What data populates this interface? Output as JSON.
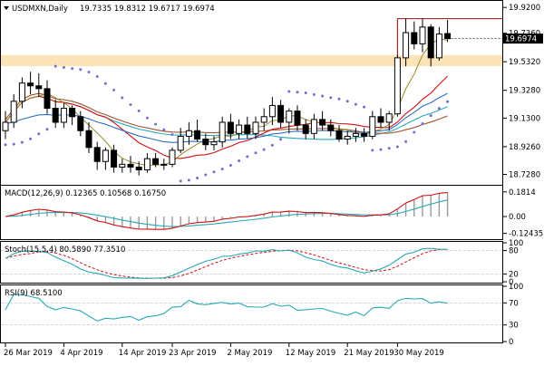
{
  "header": {
    "symbol": "USDMXN,Daily",
    "ohlc": "19.7335 19.8312 19.6717 19.6974",
    "menu_icon": "triangle-down-icon"
  },
  "price_axis": {
    "ticks": [
      "19.9200",
      "19.7360",
      "19.5320",
      "19.3280",
      "19.1300",
      "18.9260",
      "18.7280"
    ],
    "ylim": [
      18.66,
      19.96
    ],
    "current_price": "19.6974",
    "current_price_color": "#000000"
  },
  "macd": {
    "title": "MACD(12,26,9) 0.12365 0.10568 0.16750",
    "ticks": [
      "0.1814",
      "0.00",
      "-0.12435"
    ]
  },
  "stoch": {
    "title": "Stoch(15,5,4) 80.5890 77.3510",
    "ticks": [
      "100",
      "80",
      "20",
      "0"
    ]
  },
  "rsi": {
    "title": "RSI(9) 68.5100",
    "ticks": [
      "100",
      "70",
      "30",
      "0"
    ]
  },
  "date_axis": {
    "labels": [
      "26 Mar 2019",
      "4 Apr 2019",
      "14 Apr 2019",
      "23 Apr 2019",
      "2 May 2019",
      "12 May 2019",
      "21 May 2019",
      "30 May 2019"
    ]
  },
  "colors": {
    "resistance_zone": "#fce3b8",
    "resistance_line": "#a52a2a",
    "ma_fast": "#9a8c2a",
    "ma_red": "#cc1111",
    "ma_brown": "#a0522d",
    "ma_teal": "#2aa8b8",
    "ma_blue": "#1f5fbf",
    "sar": "#7070d0",
    "macd_hist": "#9a9a9a"
  },
  "chart_data": {
    "type": "candlestick",
    "candles": [
      {
        "date": "2019-03-26",
        "o": 19.04,
        "h": 19.18,
        "l": 18.98,
        "c": 19.1
      },
      {
        "date": "2019-03-27",
        "o": 19.1,
        "h": 19.3,
        "l": 19.06,
        "c": 19.25
      },
      {
        "date": "2019-03-28",
        "o": 19.25,
        "h": 19.42,
        "l": 19.2,
        "c": 19.38
      },
      {
        "date": "2019-03-29",
        "o": 19.38,
        "h": 19.46,
        "l": 19.3,
        "c": 19.36
      },
      {
        "date": "2019-04-01",
        "o": 19.36,
        "h": 19.45,
        "l": 19.28,
        "c": 19.34
      },
      {
        "date": "2019-04-02",
        "o": 19.34,
        "h": 19.4,
        "l": 19.16,
        "c": 19.2
      },
      {
        "date": "2019-04-03",
        "o": 19.2,
        "h": 19.26,
        "l": 19.06,
        "c": 19.1
      },
      {
        "date": "2019-04-04",
        "o": 19.1,
        "h": 19.24,
        "l": 19.06,
        "c": 19.2
      },
      {
        "date": "2019-04-05",
        "o": 19.2,
        "h": 19.22,
        "l": 19.08,
        "c": 19.14
      },
      {
        "date": "2019-04-08",
        "o": 19.14,
        "h": 19.18,
        "l": 19.0,
        "c": 19.04
      },
      {
        "date": "2019-04-09",
        "o": 19.04,
        "h": 19.1,
        "l": 18.88,
        "c": 18.92
      },
      {
        "date": "2019-04-10",
        "o": 18.92,
        "h": 18.96,
        "l": 18.76,
        "c": 18.82
      },
      {
        "date": "2019-04-11",
        "o": 18.82,
        "h": 18.92,
        "l": 18.76,
        "c": 18.9
      },
      {
        "date": "2019-04-12",
        "o": 18.9,
        "h": 18.94,
        "l": 18.74,
        "c": 18.78
      },
      {
        "date": "2019-04-15",
        "o": 18.78,
        "h": 18.84,
        "l": 18.74,
        "c": 18.8
      },
      {
        "date": "2019-04-16",
        "o": 18.8,
        "h": 18.86,
        "l": 18.74,
        "c": 18.78
      },
      {
        "date": "2019-04-17",
        "o": 18.78,
        "h": 18.82,
        "l": 18.72,
        "c": 18.76
      },
      {
        "date": "2019-04-18",
        "o": 18.76,
        "h": 18.88,
        "l": 18.74,
        "c": 18.84
      },
      {
        "date": "2019-04-19",
        "o": 18.84,
        "h": 18.88,
        "l": 18.78,
        "c": 18.8
      },
      {
        "date": "2019-04-22",
        "o": 18.8,
        "h": 18.84,
        "l": 18.76,
        "c": 18.8
      },
      {
        "date": "2019-04-23",
        "o": 18.8,
        "h": 18.92,
        "l": 18.78,
        "c": 18.9
      },
      {
        "date": "2019-04-24",
        "o": 18.9,
        "h": 19.06,
        "l": 18.88,
        "c": 19.0
      },
      {
        "date": "2019-04-25",
        "o": 19.0,
        "h": 19.1,
        "l": 18.94,
        "c": 19.04
      },
      {
        "date": "2019-04-26",
        "o": 19.04,
        "h": 19.12,
        "l": 18.96,
        "c": 18.98
      },
      {
        "date": "2019-04-29",
        "o": 18.98,
        "h": 19.02,
        "l": 18.9,
        "c": 18.94
      },
      {
        "date": "2019-04-30",
        "o": 18.94,
        "h": 19.0,
        "l": 18.9,
        "c": 18.96
      },
      {
        "date": "2019-05-01",
        "o": 18.96,
        "h": 19.14,
        "l": 18.92,
        "c": 19.1
      },
      {
        "date": "2019-05-02",
        "o": 19.1,
        "h": 19.16,
        "l": 18.98,
        "c": 19.02
      },
      {
        "date": "2019-05-03",
        "o": 19.02,
        "h": 19.12,
        "l": 18.98,
        "c": 19.08
      },
      {
        "date": "2019-05-06",
        "o": 19.08,
        "h": 19.14,
        "l": 18.98,
        "c": 19.02
      },
      {
        "date": "2019-05-07",
        "o": 19.02,
        "h": 19.14,
        "l": 18.98,
        "c": 19.1
      },
      {
        "date": "2019-05-08",
        "o": 19.1,
        "h": 19.2,
        "l": 19.04,
        "c": 19.14
      },
      {
        "date": "2019-05-09",
        "o": 19.14,
        "h": 19.28,
        "l": 19.08,
        "c": 19.22
      },
      {
        "date": "2019-05-10",
        "o": 19.22,
        "h": 19.26,
        "l": 19.06,
        "c": 19.1
      },
      {
        "date": "2019-05-13",
        "o": 19.1,
        "h": 19.2,
        "l": 19.02,
        "c": 19.18
      },
      {
        "date": "2019-05-14",
        "o": 19.18,
        "h": 19.22,
        "l": 19.04,
        "c": 19.08
      },
      {
        "date": "2019-05-15",
        "o": 19.08,
        "h": 19.12,
        "l": 18.98,
        "c": 19.02
      },
      {
        "date": "2019-05-16",
        "o": 19.02,
        "h": 19.16,
        "l": 18.98,
        "c": 19.12
      },
      {
        "date": "2019-05-17",
        "o": 19.12,
        "h": 19.18,
        "l": 19.04,
        "c": 19.08
      },
      {
        "date": "2019-05-20",
        "o": 19.08,
        "h": 19.12,
        "l": 19.0,
        "c": 19.04
      },
      {
        "date": "2019-05-21",
        "o": 19.04,
        "h": 19.08,
        "l": 18.96,
        "c": 18.98
      },
      {
        "date": "2019-05-22",
        "o": 18.98,
        "h": 19.04,
        "l": 18.94,
        "c": 19.0
      },
      {
        "date": "2019-05-23",
        "o": 19.0,
        "h": 19.06,
        "l": 18.96,
        "c": 19.02
      },
      {
        "date": "2019-05-24",
        "o": 19.02,
        "h": 19.06,
        "l": 18.96,
        "c": 19.0
      },
      {
        "date": "2019-05-27",
        "o": 19.0,
        "h": 19.18,
        "l": 18.98,
        "c": 19.14
      },
      {
        "date": "2019-05-28",
        "o": 19.14,
        "h": 19.2,
        "l": 19.06,
        "c": 19.1
      },
      {
        "date": "2019-05-29",
        "o": 19.1,
        "h": 19.18,
        "l": 19.04,
        "c": 19.16
      },
      {
        "date": "2019-05-30",
        "o": 19.16,
        "h": 19.58,
        "l": 19.14,
        "c": 19.56
      },
      {
        "date": "2019-05-31",
        "o": 19.56,
        "h": 19.84,
        "l": 19.5,
        "c": 19.74
      },
      {
        "date": "2019-06-03",
        "o": 19.74,
        "h": 19.82,
        "l": 19.62,
        "c": 19.66
      },
      {
        "date": "2019-06-04",
        "o": 19.66,
        "h": 19.84,
        "l": 19.6,
        "c": 19.78
      },
      {
        "date": "2019-06-05",
        "o": 19.78,
        "h": 19.8,
        "l": 19.5,
        "c": 19.56
      },
      {
        "date": "2019-06-06",
        "o": 19.56,
        "h": 19.78,
        "l": 19.54,
        "c": 19.73
      },
      {
        "date": "2019-06-07",
        "o": 19.7335,
        "h": 19.8312,
        "l": 19.6717,
        "c": 19.6974
      }
    ],
    "resistance_zone": [
      19.5,
      19.58
    ],
    "resistance_line": 19.84,
    "macd_range": [
      -0.16,
      0.22
    ],
    "stoch_range": [
      0,
      100
    ],
    "rsi_range": [
      0,
      100
    ],
    "stoch_levels": [
      80,
      20
    ],
    "rsi_levels": [
      70,
      30
    ]
  }
}
